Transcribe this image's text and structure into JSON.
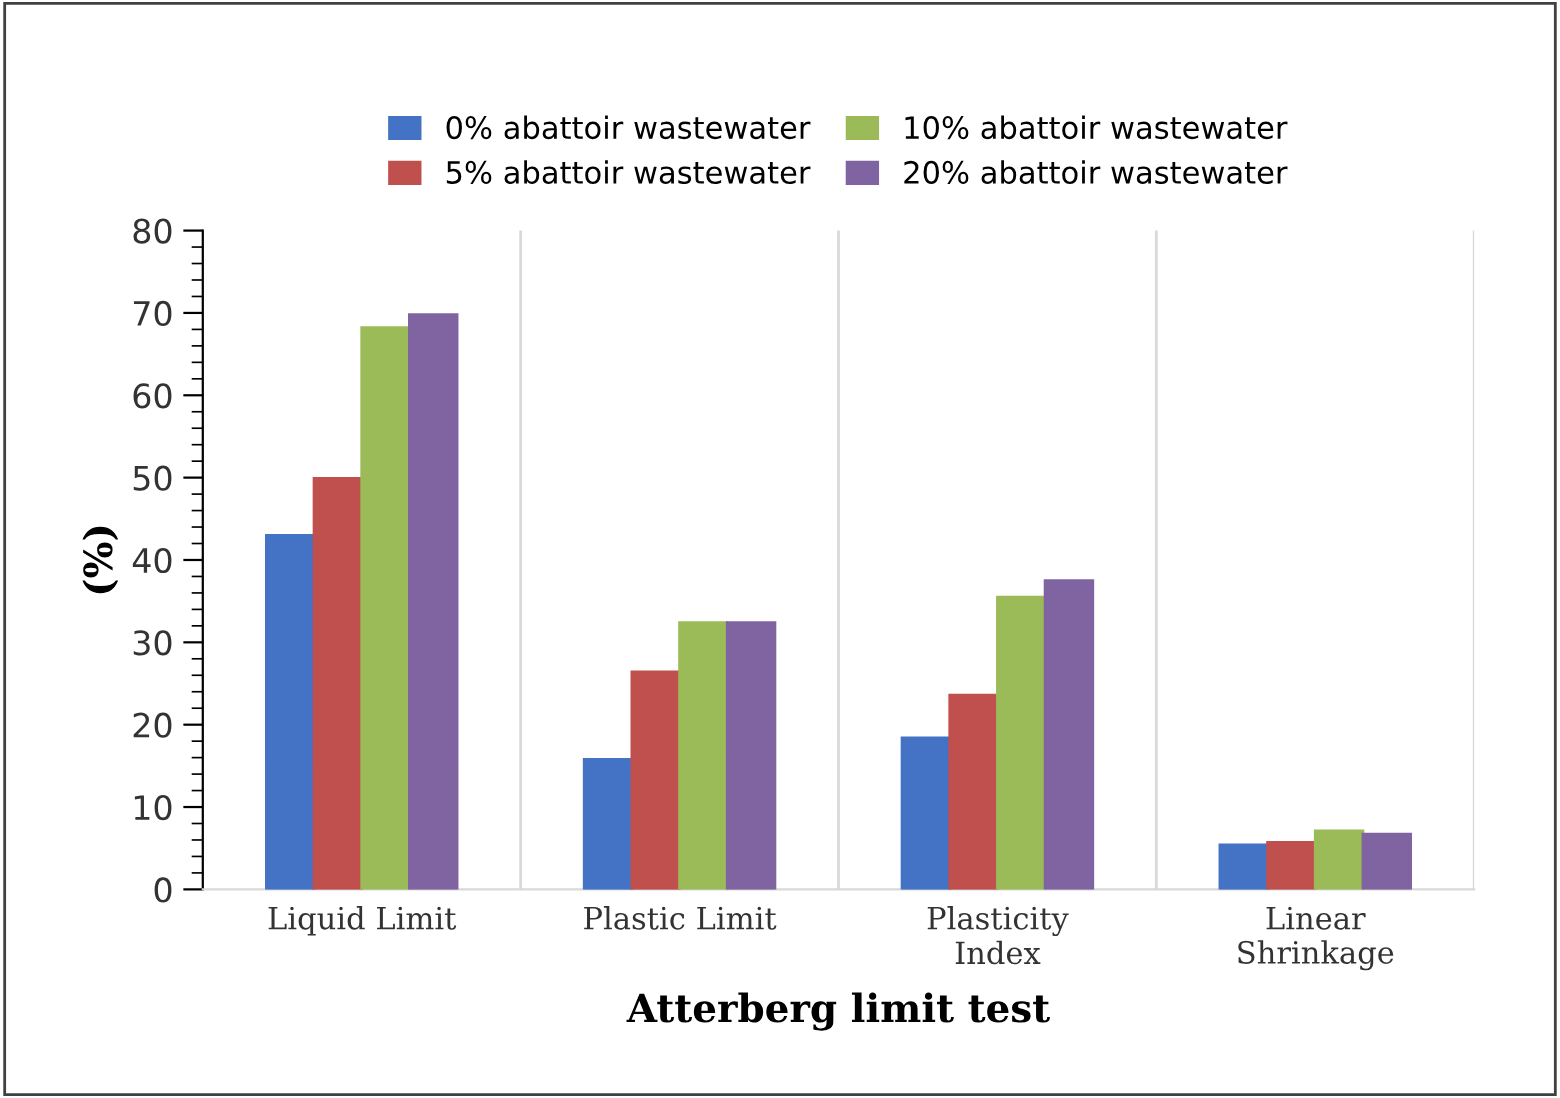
{
  "chart_data": {
    "type": "bar",
    "categories": [
      "Liquid Limit",
      "Plastic Limit",
      "Plasticity\nIndex",
      "Linear\nShrinkage"
    ],
    "series": [
      {
        "name": "0% abattoir wastewater",
        "color": "#4472c4",
        "values": [
          43,
          15.8,
          18.4,
          5.4
        ]
      },
      {
        "name": "5% abattoir wastewater",
        "color": "#c0504d",
        "values": [
          49.9,
          26.4,
          23.6,
          5.7
        ]
      },
      {
        "name": "10% abattoir wastewater",
        "color": "#9bbb59",
        "values": [
          68.2,
          32.4,
          35.5,
          7.1
        ]
      },
      {
        "name": "20% abattoir wastewater",
        "color": "#8064a2",
        "values": [
          69.8,
          32.4,
          37.5,
          6.7
        ]
      }
    ],
    "xlabel": "Atterberg limit test",
    "ylabel": "(%)",
    "ylim": [
      0,
      80
    ],
    "yticks": [
      0,
      10,
      20,
      30,
      40,
      50,
      60,
      70,
      80
    ],
    "grid": "x",
    "legend": "top"
  }
}
